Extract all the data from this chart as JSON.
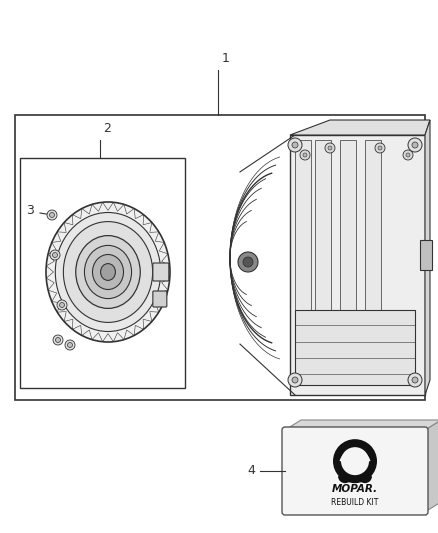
{
  "bg_color": "#ffffff",
  "line_color": "#333333",
  "gray_light": "#d8d8d8",
  "gray_mid": "#b0b0b0",
  "gray_dark": "#888888",
  "label_1": "1",
  "label_2": "2",
  "label_3": "3",
  "label_4": "4",
  "mopar_text": "MOPAR.",
  "rebuild_text": "REBUILD KIT",
  "fig_w": 4.38,
  "fig_h": 5.33,
  "dpi": 100
}
